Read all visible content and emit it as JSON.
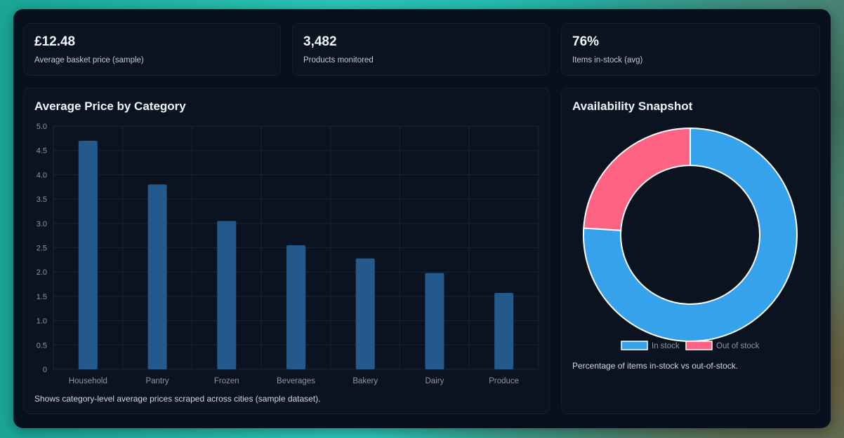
{
  "kpis": [
    {
      "value": "£12.48",
      "label": "Average basket price (sample)"
    },
    {
      "value": "3,482",
      "label": "Products monitored"
    },
    {
      "value": "76%",
      "label": "Items in-stock (avg)"
    }
  ],
  "bar_card": {
    "title": "Average Price by Category",
    "caption": "Shows category-level average prices scraped across cities (sample dataset)."
  },
  "donut_card": {
    "title": "Availability Snapshot",
    "caption": "Percentage of items in-stock vs out-of-stock."
  },
  "colors": {
    "bar": "#245a8b",
    "in_stock": "#36a2eb",
    "out_of_stock": "#ff6384",
    "grid": "#1a2434",
    "tick": "#8d97a6"
  },
  "chart_data": [
    {
      "type": "bar",
      "categories": [
        "Household",
        "Pantry",
        "Frozen",
        "Beverages",
        "Bakery",
        "Dairy",
        "Produce"
      ],
      "values": [
        4.7,
        3.8,
        3.05,
        2.55,
        2.28,
        1.98,
        1.57
      ],
      "yticks": [
        "0",
        "0.5",
        "1.0",
        "1.5",
        "2.0",
        "2.5",
        "3.0",
        "3.5",
        "4.0",
        "4.5",
        "5.0"
      ],
      "ylim": [
        0,
        5
      ],
      "grid": true,
      "title": "Average Price by Category"
    },
    {
      "type": "pie",
      "style": "doughnut",
      "labels": [
        "In stock",
        "Out of stock"
      ],
      "values": [
        76,
        24
      ],
      "legend": "bottom",
      "title": "Availability Snapshot"
    }
  ]
}
